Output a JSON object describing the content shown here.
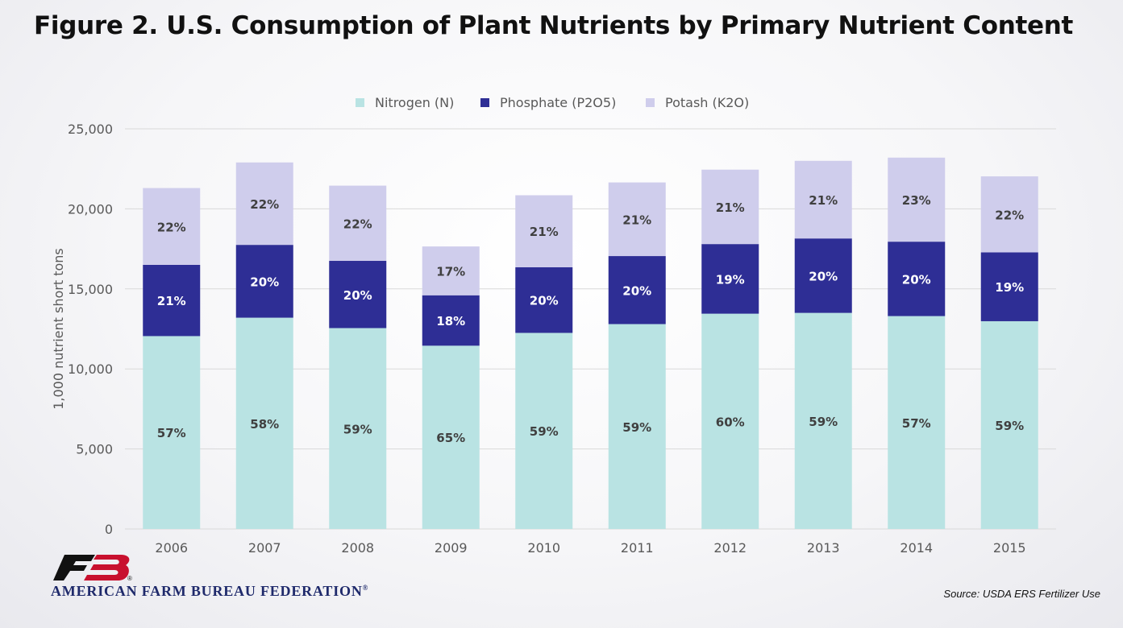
{
  "title": "Figure 2. U.S. Consumption of Plant Nutrients by Primary Nutrient Content",
  "source": "Source: USDA ERS Fertilizer Use",
  "organization": "AMERICAN FARM BUREAU FEDERATION",
  "organization_mark": "®",
  "logo": {
    "icon": "farm-bureau-fb-logo",
    "text": "FB"
  },
  "colors": {
    "nitrogen": "#b9e3e3",
    "phosphate": "#2e2e95",
    "potash": "#cfcdec",
    "grid": "#d9d9d9",
    "axis_text": "#595959",
    "label_dark": "#404040",
    "label_light": "#ffffff",
    "logo_red": "#c8102e",
    "logo_black": "#111111"
  },
  "chart_data": {
    "type": "bar",
    "stacked": true,
    "categories": [
      "2006",
      "2007",
      "2008",
      "2009",
      "2010",
      "2011",
      "2012",
      "2013",
      "2014",
      "2015"
    ],
    "ylabel": "1,000 nutrient short tons",
    "xlabel": "",
    "ylim": [
      0,
      25000
    ],
    "yticks": [
      0,
      5000,
      10000,
      15000,
      20000,
      25000
    ],
    "ytick_labels": [
      "0",
      "5,000",
      "10,000",
      "15,000",
      "20,000",
      "25,000"
    ],
    "grid": true,
    "legend_position": "top",
    "series": [
      {
        "name": "Nitrogen (N)",
        "values": [
          12050,
          13200,
          12550,
          11450,
          12250,
          12800,
          13450,
          13500,
          13300,
          12980
        ],
        "labels": [
          "57%",
          "58%",
          "59%",
          "65%",
          "59%",
          "59%",
          "60%",
          "59%",
          "57%",
          "59%"
        ]
      },
      {
        "name": "Phosphate (P2O5)",
        "values": [
          4450,
          4550,
          4200,
          3150,
          4100,
          4250,
          4350,
          4650,
          4650,
          4300
        ],
        "labels": [
          "21%",
          "20%",
          "20%",
          "18%",
          "20%",
          "20%",
          "19%",
          "20%",
          "20%",
          "19%"
        ]
      },
      {
        "name": "Potash (K2O)",
        "values": [
          4800,
          5150,
          4700,
          3050,
          4500,
          4600,
          4650,
          4850,
          5250,
          4750
        ],
        "labels": [
          "22%",
          "22%",
          "22%",
          "17%",
          "21%",
          "21%",
          "21%",
          "21%",
          "23%",
          "22%"
        ]
      }
    ]
  }
}
